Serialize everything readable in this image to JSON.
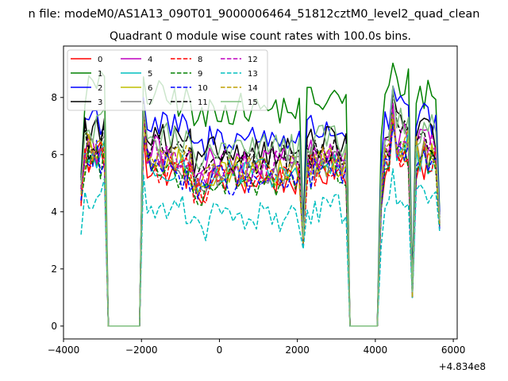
{
  "figure": {
    "suptitle": "n file: modeM0/AS1A13_090T01_9000006464_51812cztM0_level2_quad_clean",
    "title": "Quadrant 0 module wise count rates with 100.0s bins.",
    "offset_text": "+4.834e8"
  },
  "chart_data": {
    "type": "line",
    "title": "Quadrant 0 module wise count rates with 100.0s bins.",
    "xlabel": "",
    "ylabel": "",
    "xlim": [
      -4000,
      6100
    ],
    "ylim": [
      -0.45,
      9.8
    ],
    "x_ticks": [
      -4000,
      -2000,
      0,
      2000,
      4000,
      6000
    ],
    "x_tick_labels": [
      "−4000",
      "−2000",
      "0",
      "2000",
      "4000",
      "6000"
    ],
    "y_ticks": [
      0,
      2,
      4,
      6,
      8
    ],
    "y_tick_labels": [
      "0",
      "2",
      "4",
      "6",
      "8"
    ],
    "x_offset": "+4.834e8",
    "grid": false,
    "legend_position": "top-left",
    "legend_columns": 4,
    "segments": [
      {
        "x_start": -3550,
        "x_end": -2950,
        "zero_after": -2850
      },
      {
        "x_start": -1950,
        "x_end": 2050,
        "zero_before": -2050
      },
      {
        "x_start": 2150,
        "x_end": 3250,
        "dip_at": 2150
      },
      {
        "x_start": 4150,
        "x_end": 5650,
        "zero_before": 4050,
        "dip_at": 4950
      }
    ],
    "gaps": [
      {
        "x_start": -2850,
        "x_end": -2050,
        "value": 0
      },
      {
        "x_start": 3350,
        "x_end": 4050,
        "value": 0
      }
    ],
    "series": [
      {
        "name": "0",
        "color": "#ff0000",
        "dash": "solid",
        "level": 5.3,
        "start": 4.2,
        "peak": 7.2,
        "dip": 3.2
      },
      {
        "name": "1",
        "color": "#008000",
        "dash": "solid",
        "level": 7.8,
        "start": 5.3,
        "peak": 9.2,
        "dip": 3.4
      },
      {
        "name": "2",
        "color": "#0000ff",
        "dash": "solid",
        "level": 6.8,
        "start": 5.2,
        "peak": 8.4,
        "dip": 3.3
      },
      {
        "name": "3",
        "color": "#000000",
        "dash": "solid",
        "level": 6.3,
        "start": 5.1,
        "peak": 8.2,
        "dip": 3.2
      },
      {
        "name": "4",
        "color": "#bf00bf",
        "dash": "solid",
        "level": 5.9,
        "start": 5.0,
        "peak": 7.8,
        "dip": 3.1
      },
      {
        "name": "5",
        "color": "#00bfbf",
        "dash": "solid",
        "level": 5.5,
        "start": 4.6,
        "peak": 7.5,
        "dip": 3.0
      },
      {
        "name": "6",
        "color": "#bfbf00",
        "dash": "solid",
        "level": 5.6,
        "start": 4.8,
        "peak": 7.4,
        "dip": 3.0
      },
      {
        "name": "7",
        "color": "#808080",
        "dash": "solid",
        "level": 5.6,
        "start": 4.7,
        "peak": 7.3,
        "dip": 3.0
      },
      {
        "name": "8",
        "color": "#ff0000",
        "dash": "dashed",
        "level": 5.4,
        "start": 4.3,
        "peak": 7.2,
        "dip": 2.9
      },
      {
        "name": "9",
        "color": "#008000",
        "dash": "dashed",
        "level": 5.3,
        "start": 4.4,
        "peak": 7.1,
        "dip": 2.9
      },
      {
        "name": "10",
        "color": "#0000ff",
        "dash": "dashed",
        "level": 5.3,
        "start": 4.4,
        "peak": 7.0,
        "dip": 2.8
      },
      {
        "name": "11",
        "color": "#000000",
        "dash": "dashed",
        "level": 6.0,
        "start": 4.8,
        "peak": 8.2,
        "dip": 3.0
      },
      {
        "name": "12",
        "color": "#bf00bf",
        "dash": "dashed",
        "level": 5.8,
        "start": 4.8,
        "peak": 7.7,
        "dip": 3.0
      },
      {
        "name": "13",
        "color": "#00bfbf",
        "dash": "dashed",
        "level": 4.0,
        "start": 3.2,
        "peak": 5.5,
        "dip": 2.7
      },
      {
        "name": "14",
        "color": "#bf9f00",
        "dash": "dashed",
        "level": 5.7,
        "start": 4.6,
        "peak": 7.4,
        "dip": 2.9
      },
      {
        "name": "15",
        "color": "#7fbf7f",
        "dash": "solid",
        "level": 6.4,
        "start": 5.0,
        "peak": 8.4,
        "dip": 3.1
      }
    ]
  }
}
